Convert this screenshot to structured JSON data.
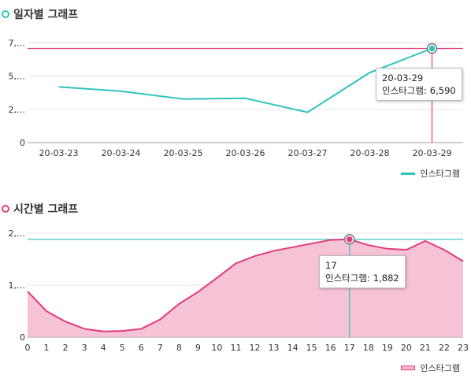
{
  "chart_data": [
    {
      "type": "line",
      "title": "일자별 그래프",
      "categories": [
        "20-03-23",
        "20-03-24",
        "20-03-25",
        "20-03-26",
        "20-03-27",
        "20-03-28",
        "20-03-29"
      ],
      "series": [
        {
          "name": "인스타그램",
          "values": [
            3900,
            3600,
            3050,
            3100,
            2120,
            4900,
            6590
          ]
        }
      ],
      "y_ticks": [
        "0",
        "2,…",
        "5,…",
        "7,…"
      ],
      "ylim": [
        0,
        7500
      ],
      "highlight_index": 6,
      "grid": true,
      "legend": "bottom-right",
      "colors": {
        "line": "#2ec4bc",
        "marker": "#2ec4bc",
        "crosshair": "#e23b7a"
      },
      "tooltip": {
        "label": "20-03-29",
        "series": "인스타그램:",
        "value": "6,590"
      }
    },
    {
      "type": "area",
      "title": "시간별 그래프",
      "categories": [
        "0",
        "1",
        "2",
        "3",
        "4",
        "5",
        "6",
        "7",
        "8",
        "9",
        "10",
        "11",
        "12",
        "13",
        "14",
        "15",
        "16",
        "17",
        "18",
        "19",
        "20",
        "21",
        "22",
        "23"
      ],
      "series": [
        {
          "name": "인스타그램",
          "values": [
            880,
            500,
            300,
            160,
            110,
            120,
            160,
            340,
            640,
            870,
            1140,
            1420,
            1560,
            1660,
            1730,
            1800,
            1870,
            1882,
            1770,
            1700,
            1680,
            1850,
            1680,
            1460
          ]
        }
      ],
      "y_ticks": [
        "0",
        "1,…",
        "2,…"
      ],
      "ylim": [
        0,
        2000
      ],
      "highlight_index": 17,
      "grid": true,
      "legend": "bottom-right",
      "colors": {
        "line": "#e23b7a",
        "fill": "#f5b8cf",
        "marker": "#e23b7a",
        "crosshair": "#2ec4bc"
      },
      "tooltip": {
        "label": "17",
        "series": "인스타그램:",
        "value": "1,882"
      }
    }
  ]
}
